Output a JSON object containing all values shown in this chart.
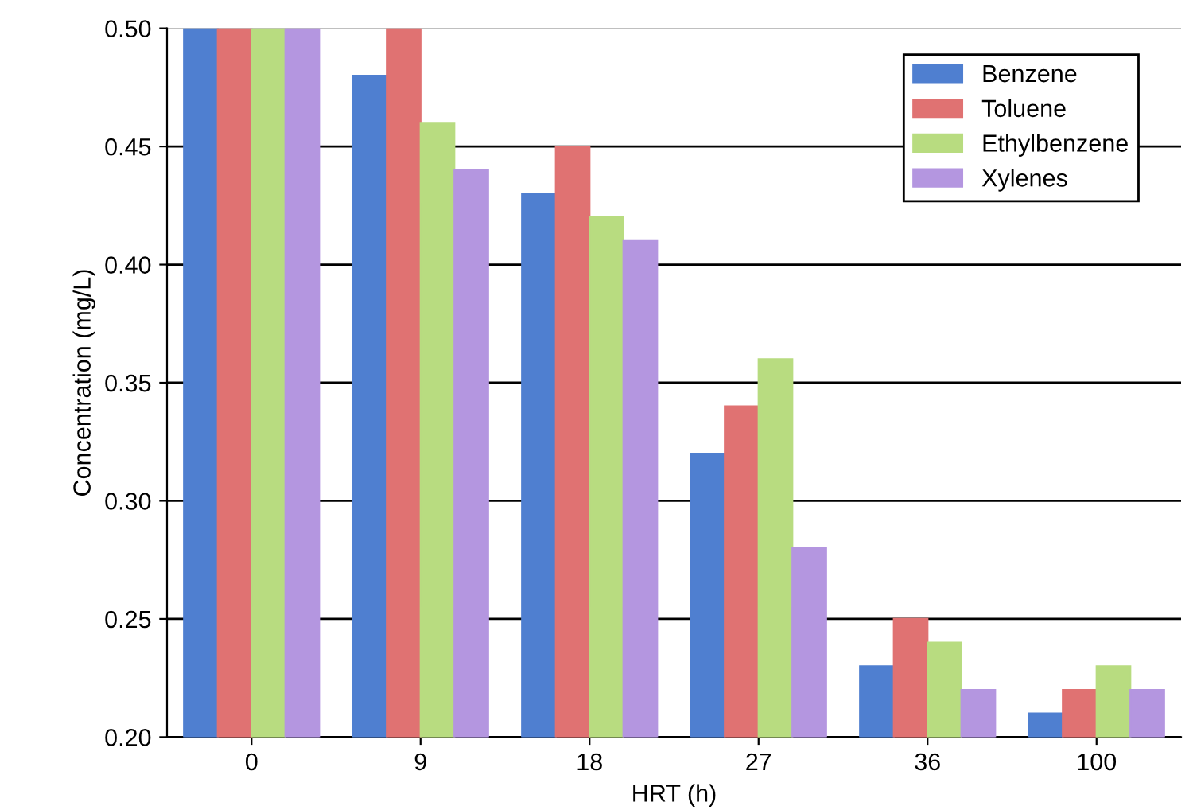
{
  "chart_data": {
    "type": "bar",
    "xlabel": "HRT (h)",
    "ylabel": "Concentration (mg/L)",
    "categories": [
      "0",
      "9",
      "18",
      "27",
      "36",
      "100"
    ],
    "series": [
      {
        "name": "Benzene",
        "color": "#4f7fd0",
        "values": [
          0.5,
          0.48,
          0.43,
          0.32,
          0.23,
          0.21
        ]
      },
      {
        "name": "Toluene",
        "color": "#e07272",
        "values": [
          0.5,
          0.5,
          0.45,
          0.34,
          0.25,
          0.22
        ]
      },
      {
        "name": "Ethylbenzene",
        "color": "#b8dc80",
        "values": [
          0.5,
          0.46,
          0.42,
          0.36,
          0.24,
          0.23
        ]
      },
      {
        "name": "Xylenes",
        "color": "#b496e0",
        "values": [
          0.5,
          0.44,
          0.41,
          0.28,
          0.22,
          0.22
        ]
      }
    ],
    "ylim": [
      0.2,
      0.5
    ],
    "yticks": [
      {
        "value": 0.2,
        "label": "0.20"
      },
      {
        "value": 0.25,
        "label": "0.25"
      },
      {
        "value": 0.3,
        "label": "0.30"
      },
      {
        "value": 0.35,
        "label": "0.35"
      },
      {
        "value": 0.4,
        "label": "0.40"
      },
      {
        "value": 0.45,
        "label": "0.45"
      },
      {
        "value": 0.5,
        "label": "0.50"
      }
    ],
    "grid": "y",
    "legend": "top right"
  }
}
